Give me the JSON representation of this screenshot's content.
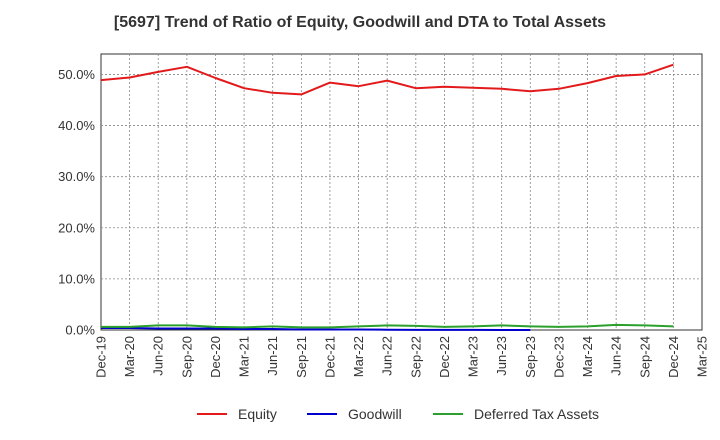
{
  "chart_data": {
    "type": "line",
    "title": "[5697]  Trend of Ratio of Equity, Goodwill and DTA to Total Assets",
    "xlabel": "",
    "ylabel": "",
    "ylim": [
      0,
      54
    ],
    "y_ticks": [
      0,
      10,
      20,
      30,
      40,
      50
    ],
    "y_tick_labels": [
      "0.0%",
      "10.0%",
      "20.0%",
      "30.0%",
      "40.0%",
      "50.0%"
    ],
    "categories": [
      "Dec-19",
      "Mar-20",
      "Jun-20",
      "Sep-20",
      "Dec-20",
      "Mar-21",
      "Jun-21",
      "Sep-21",
      "Dec-21",
      "Mar-22",
      "Jun-22",
      "Sep-22",
      "Dec-22",
      "Mar-23",
      "Jun-23",
      "Sep-23",
      "Dec-23",
      "Mar-24",
      "Jun-24",
      "Sep-24",
      "Dec-24",
      "Mar-25"
    ],
    "grid": true,
    "legend_position": "bottom",
    "series": [
      {
        "name": "Equity",
        "color": "#e31a1c",
        "values": [
          48.9,
          49.4,
          50.5,
          51.5,
          49.3,
          47.3,
          46.4,
          46.1,
          48.4,
          47.7,
          48.8,
          47.3,
          47.6,
          47.4,
          47.2,
          46.7,
          47.2,
          48.3,
          49.7,
          50.0,
          51.9,
          null
        ]
      },
      {
        "name": "Goodwill",
        "color": "#0000cc",
        "values": [
          0.4,
          0.4,
          0.3,
          0.3,
          0.3,
          0.2,
          0.2,
          0.1,
          0.1,
          0.1,
          0.05,
          0.02,
          0.01,
          0.01,
          0.0,
          0.0,
          null,
          null,
          null,
          null,
          null,
          null
        ]
      },
      {
        "name": "Deferred Tax Assets",
        "color": "#2ca02c",
        "values": [
          0.6,
          0.6,
          0.9,
          0.9,
          0.6,
          0.5,
          0.7,
          0.5,
          0.5,
          0.7,
          0.9,
          0.8,
          0.6,
          0.7,
          0.9,
          0.7,
          0.6,
          0.7,
          1.0,
          0.9,
          0.7,
          null
        ]
      }
    ]
  }
}
